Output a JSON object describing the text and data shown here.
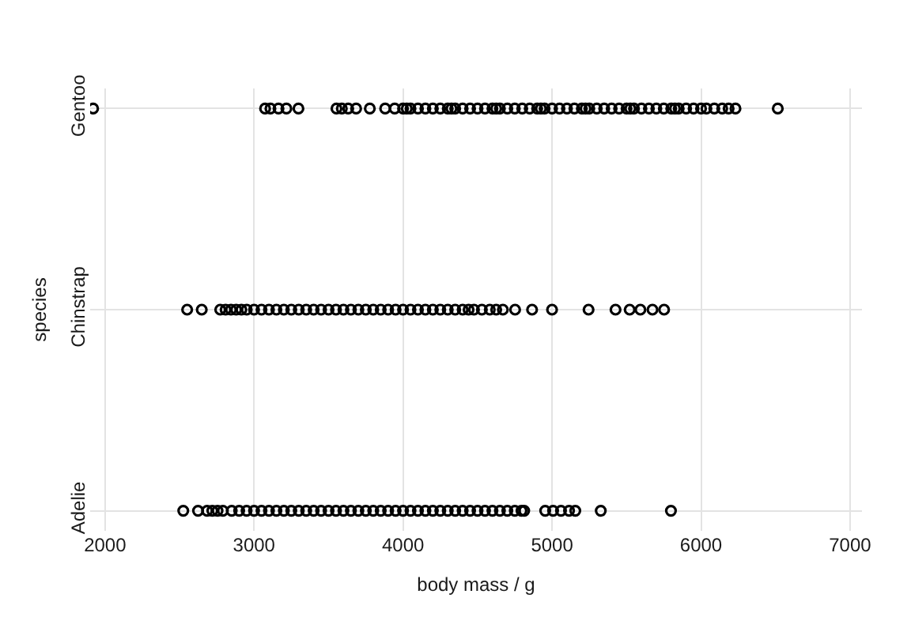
{
  "chart_data": {
    "type": "scatter",
    "orientation": "horizontal",
    "xlabel": "body mass / g",
    "ylabel": "species",
    "categories": [
      "Gentoo",
      "Chinstrap",
      "Adelie"
    ],
    "xlim": [
      1900,
      7080
    ],
    "xticks": [
      2000,
      3000,
      4000,
      5000,
      6000,
      7000
    ],
    "grid": true,
    "marker": "circle",
    "series": [
      {
        "color": "#000000",
        "x": [
          "Gentoo",
          "Gentoo",
          "Gentoo",
          "Gentoo",
          "Gentoo",
          "Gentoo",
          "Gentoo",
          "Gentoo",
          "Gentoo",
          "Gentoo",
          "Gentoo",
          "Gentoo",
          "Gentoo",
          "Gentoo",
          "Gentoo",
          "Gentoo",
          "Gentoo",
          "Gentoo",
          "Gentoo",
          "Gentoo",
          "Gentoo",
          "Gentoo",
          "Gentoo",
          "Gentoo",
          "Gentoo",
          "Gentoo",
          "Gentoo",
          "Gentoo",
          "Gentoo",
          "Gentoo",
          "Gentoo",
          "Gentoo",
          "Gentoo",
          "Gentoo",
          "Gentoo",
          "Gentoo",
          "Gentoo",
          "Gentoo",
          "Gentoo",
          "Gentoo",
          "Gentoo",
          "Gentoo",
          "Gentoo",
          "Gentoo",
          "Gentoo",
          "Gentoo",
          "Gentoo",
          "Gentoo",
          "Gentoo",
          "Gentoo",
          "Gentoo",
          "Gentoo",
          "Gentoo",
          "Gentoo",
          "Gentoo",
          "Gentoo",
          "Gentoo",
          "Gentoo",
          "Gentoo",
          "Gentoo",
          "Gentoo",
          "Gentoo",
          "Gentoo",
          "Gentoo",
          "Gentoo",
          "Gentoo",
          "Gentoo"
        ],
        "values": [
          1920,
          3074,
          3110,
          3164,
          3217,
          3298,
          3553,
          3589,
          3632,
          3685,
          3777,
          3880,
          3944,
          4000,
          4050,
          4100,
          4150,
          4200,
          4250,
          4300,
          4350,
          4400,
          4450,
          4500,
          4550,
          4600,
          4650,
          4700,
          4750,
          4800,
          4850,
          4900,
          4950,
          5000,
          5050,
          5100,
          5150,
          5200,
          5250,
          5300,
          5350,
          5400,
          5450,
          5500,
          5550,
          5600,
          5650,
          5700,
          5750,
          5800,
          5850,
          5900,
          5950,
          6000,
          6036,
          6089,
          6142,
          6185,
          6231,
          6515,
          4025,
          4325,
          4625,
          4925,
          5225,
          5525,
          5825
        ]
      },
      {
        "color": "#000000",
        "x": [
          "Chinstrap",
          "Chinstrap",
          "Chinstrap",
          "Chinstrap",
          "Chinstrap",
          "Chinstrap",
          "Chinstrap",
          "Chinstrap",
          "Chinstrap",
          "Chinstrap",
          "Chinstrap",
          "Chinstrap",
          "Chinstrap",
          "Chinstrap",
          "Chinstrap",
          "Chinstrap",
          "Chinstrap",
          "Chinstrap",
          "Chinstrap",
          "Chinstrap",
          "Chinstrap",
          "Chinstrap",
          "Chinstrap",
          "Chinstrap",
          "Chinstrap",
          "Chinstrap",
          "Chinstrap",
          "Chinstrap",
          "Chinstrap",
          "Chinstrap",
          "Chinstrap",
          "Chinstrap",
          "Chinstrap",
          "Chinstrap",
          "Chinstrap",
          "Chinstrap",
          "Chinstrap",
          "Chinstrap",
          "Chinstrap",
          "Chinstrap",
          "Chinstrap",
          "Chinstrap",
          "Chinstrap",
          "Chinstrap",
          "Chinstrap",
          "Chinstrap",
          "Chinstrap",
          "Chinstrap",
          "Chinstrap",
          "Chinstrap",
          "Chinstrap",
          "Chinstrap"
        ],
        "values": [
          2551,
          2649,
          2773,
          2809,
          2845,
          2880,
          2915,
          2951,
          3000,
          3050,
          3100,
          3150,
          3200,
          3250,
          3300,
          3350,
          3400,
          3450,
          3500,
          3550,
          3600,
          3650,
          3700,
          3750,
          3800,
          3850,
          3900,
          3950,
          4000,
          4050,
          4100,
          4150,
          4200,
          4250,
          4300,
          4350,
          4400,
          4440,
          4476,
          4529,
          4582,
          4625,
          4670,
          4752,
          4866,
          5000,
          5245,
          5426,
          5521,
          5593,
          5674,
          5752
        ]
      },
      {
        "color": "#000000",
        "x": [
          "Adelie",
          "Adelie",
          "Adelie",
          "Adelie",
          "Adelie",
          "Adelie",
          "Adelie",
          "Adelie",
          "Adelie",
          "Adelie",
          "Adelie",
          "Adelie",
          "Adelie",
          "Adelie",
          "Adelie",
          "Adelie",
          "Adelie",
          "Adelie",
          "Adelie",
          "Adelie",
          "Adelie",
          "Adelie",
          "Adelie",
          "Adelie",
          "Adelie",
          "Adelie",
          "Adelie",
          "Adelie",
          "Adelie",
          "Adelie",
          "Adelie",
          "Adelie",
          "Adelie",
          "Adelie",
          "Adelie",
          "Adelie",
          "Adelie",
          "Adelie",
          "Adelie",
          "Adelie",
          "Adelie",
          "Adelie",
          "Adelie",
          "Adelie",
          "Adelie",
          "Adelie",
          "Adelie",
          "Adelie",
          "Adelie",
          "Adelie",
          "Adelie",
          "Adelie",
          "Adelie",
          "Adelie"
        ],
        "values": [
          2525,
          2624,
          2685,
          2720,
          2755,
          2791,
          2850,
          2900,
          2950,
          3000,
          3050,
          3100,
          3150,
          3200,
          3250,
          3300,
          3350,
          3400,
          3450,
          3500,
          3550,
          3600,
          3650,
          3700,
          3750,
          3800,
          3850,
          3900,
          3950,
          4000,
          4050,
          4100,
          4150,
          4200,
          4250,
          4300,
          4350,
          4400,
          4450,
          4500,
          4550,
          4600,
          4650,
          4700,
          4750,
          4813,
          4954,
          5007,
          5060,
          5114,
          5156,
          5327,
          5798,
          4795
        ]
      }
    ]
  }
}
